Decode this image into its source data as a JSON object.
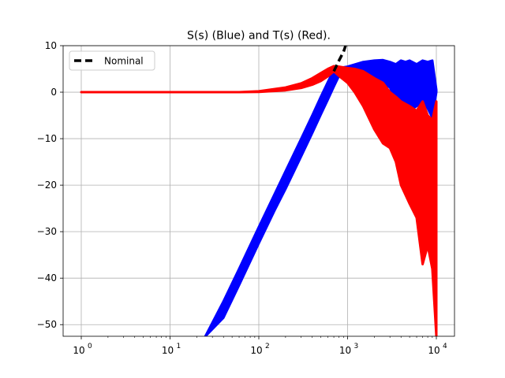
{
  "chart_data": {
    "type": "line",
    "title": "S(s) (Blue) and T(s) (Red).",
    "xlabel": "",
    "ylabel": "",
    "x_scale": "log",
    "xlim": [
      1,
      10000
    ],
    "ylim": [
      -52.5,
      10
    ],
    "grid": true,
    "x_ticks": [
      1,
      10,
      100,
      1000,
      10000
    ],
    "x_tick_labels": [
      "10",
      "10",
      "10",
      "10",
      "10"
    ],
    "x_tick_exponents": [
      "0",
      "1",
      "2",
      "3",
      "4"
    ],
    "y_ticks": [
      10,
      0,
      -10,
      -20,
      -30,
      -40,
      -50
    ],
    "y_tick_labels": [
      "10",
      "0",
      "−10",
      "−20",
      "−30",
      "−40",
      "−50"
    ],
    "legend": {
      "position": "top-left",
      "entries": [
        "Nominal"
      ]
    },
    "colors": {
      "sensitivity": "#0000ff",
      "complementary": "#ff0000",
      "nominal": "#000000"
    },
    "series": [
      {
        "name": "Nominal",
        "style": "dashed",
        "x": [
          700,
          800,
          900,
          950
        ],
        "y": [
          4.5,
          6.8,
          8.7,
          10
        ]
      },
      {
        "style": "band",
        "description_role": "S(s) ensemble",
        "x": [
          25,
          40,
          60,
          100,
          150,
          200,
          300,
          400,
          500,
          600,
          700,
          800,
          1000,
          1500,
          2000,
          2500,
          3000,
          3500,
          4000,
          4500,
          5000,
          6000,
          7000,
          8000,
          9000,
          10000
        ],
        "y_low": [
          -52.5,
          -48.5,
          -41.5,
          -32.5,
          -25.5,
          -20.8,
          -13.8,
          -8.8,
          -4.8,
          -1.6,
          1.2,
          3.5,
          4.0,
          3.0,
          2.5,
          2.0,
          1.0,
          -2.0,
          -3.0,
          -2.0,
          -4.0,
          -3.0,
          -2.0,
          -3.5,
          -5.5,
          0.0
        ],
        "y_high": [
          -52.5,
          -45.0,
          -38.0,
          -29.0,
          -22.0,
          -17.0,
          -10.0,
          -5.0,
          -1.0,
          2.2,
          4.8,
          5.2,
          5.5,
          6.5,
          6.8,
          6.9,
          6.5,
          6.0,
          6.8,
          6.5,
          6.8,
          6.0,
          6.8,
          6.5,
          6.8,
          0.5
        ]
      },
      {
        "style": "band",
        "description_role": "T(s) ensemble",
        "x": [
          1,
          10,
          30,
          60,
          100,
          200,
          300,
          400,
          500,
          600,
          700,
          800,
          1000,
          1200,
          1500,
          2000,
          2500,
          3000,
          3500,
          4000,
          5000,
          6000,
          7000,
          8000,
          9000,
          10000
        ],
        "y_low": [
          0.0,
          0.0,
          0.0,
          0.0,
          0.05,
          0.4,
          0.9,
          1.6,
          2.4,
          3.4,
          4.5,
          3.5,
          2.0,
          0.0,
          -3.0,
          -8.0,
          -11.0,
          -12.0,
          -15.0,
          -20.0,
          -24.0,
          -27.0,
          -37.0,
          -33.0,
          -38.0,
          -52.5
        ],
        "y_high": [
          0.0,
          0.0,
          0.0,
          0.0,
          0.2,
          1.0,
          1.9,
          3.0,
          4.1,
          5.0,
          5.6,
          5.5,
          5.2,
          5.0,
          4.5,
          3.0,
          2.0,
          0.0,
          -1.0,
          -2.0,
          -3.0,
          -4.0,
          -2.0,
          -5.0,
          -6.0,
          -2.0
        ]
      }
    ]
  }
}
